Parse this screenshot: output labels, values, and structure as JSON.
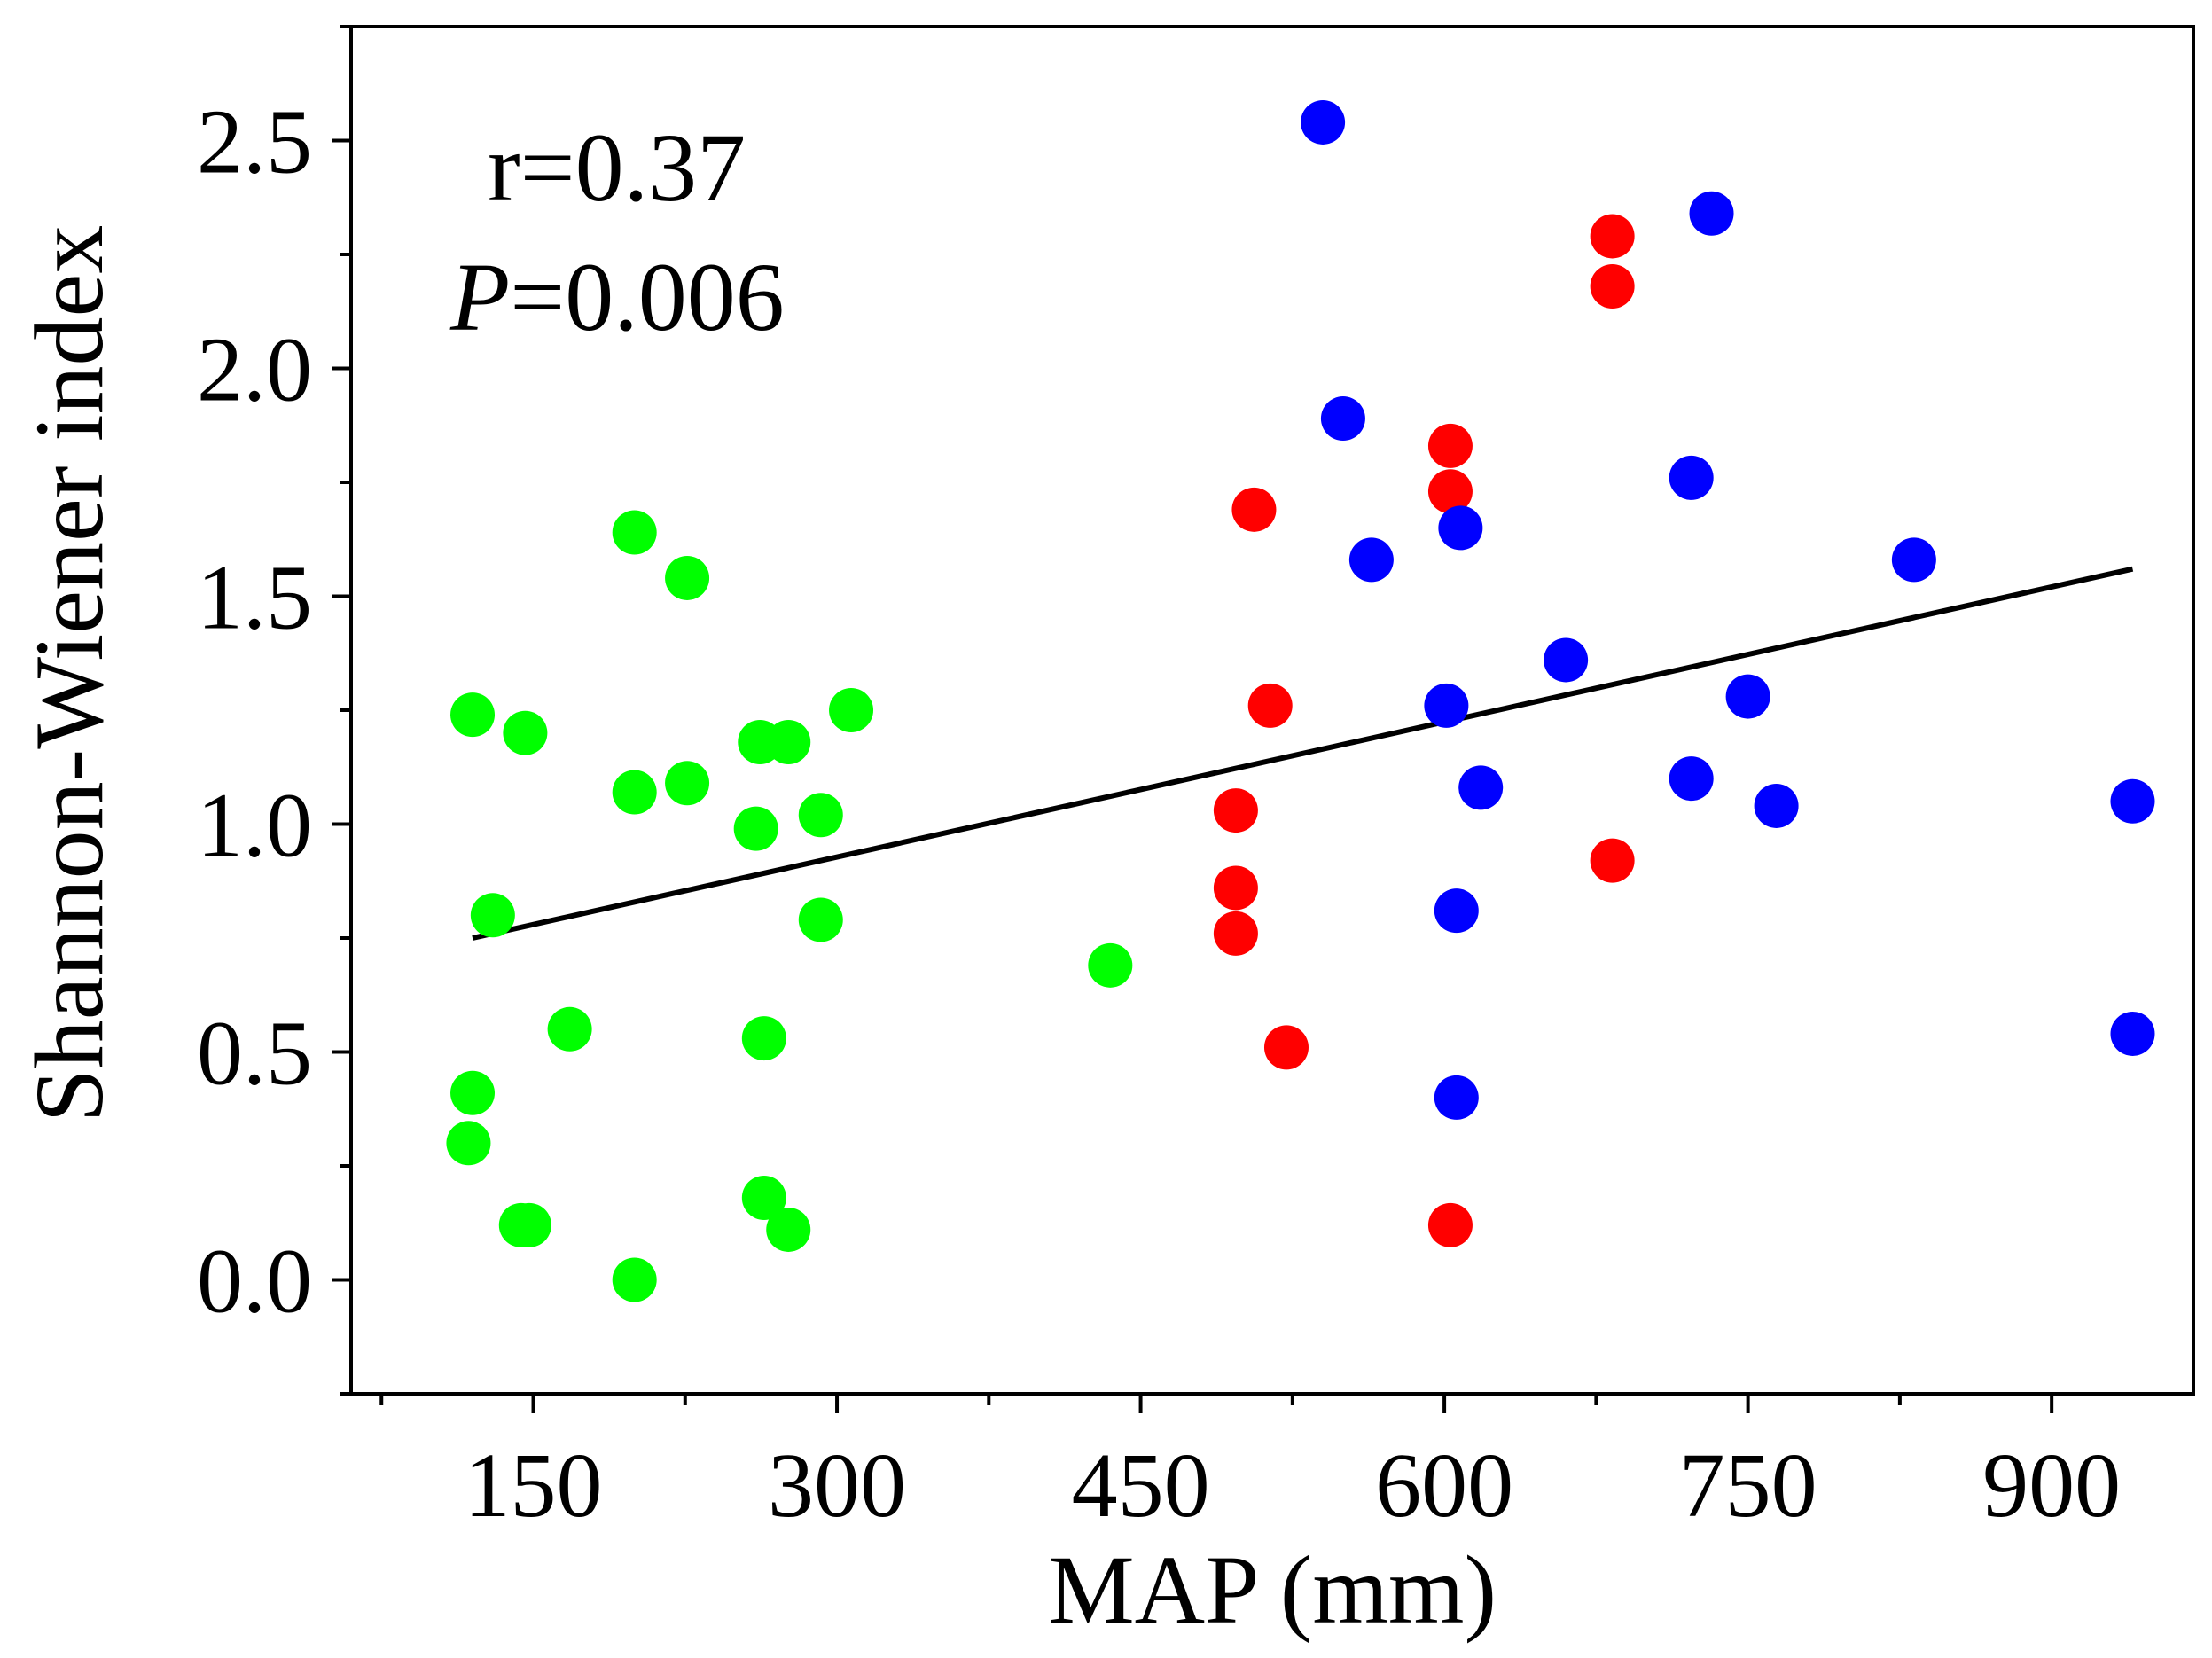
{
  "chart_data": {
    "type": "scatter",
    "title": "",
    "xlabel": "MAP (mm)",
    "ylabel": "Shannon-Wiener index",
    "xlim": [
      60,
      970
    ],
    "ylim": [
      -0.25,
      2.75
    ],
    "xticks": [
      150,
      300,
      450,
      600,
      750,
      900
    ],
    "yticks": [
      0.0,
      0.5,
      1.0,
      1.5,
      2.0,
      2.5
    ],
    "xtick_labels": [
      "150",
      "300",
      "450",
      "600",
      "750",
      "900"
    ],
    "ytick_labels": [
      "0.0",
      "0.5",
      "1.0",
      "1.5",
      "2.0",
      "2.5"
    ],
    "grid": false,
    "annotations": {
      "r_text": "r=0.37",
      "p_symbol": "P",
      "p_value": "=0.006"
    },
    "trend_line": {
      "x": [
        120,
        940
      ],
      "y": [
        0.75,
        1.56
      ]
    },
    "series": [
      {
        "name": "green group",
        "color": "#00ff00",
        "points": [
          [
            120,
            1.24
          ],
          [
            146,
            1.2
          ],
          [
            200,
            1.07
          ],
          [
            200,
            1.64
          ],
          [
            226,
            1.54
          ],
          [
            226,
            1.09
          ],
          [
            262,
            1.18
          ],
          [
            276,
            1.18
          ],
          [
            307,
            1.25
          ],
          [
            260,
            0.99
          ],
          [
            292,
            1.02
          ],
          [
            292,
            0.79
          ],
          [
            130,
            0.8
          ],
          [
            435,
            0.69
          ],
          [
            168,
            0.55
          ],
          [
            264,
            0.53
          ],
          [
            120,
            0.41
          ],
          [
            118,
            0.3
          ],
          [
            144,
            0.12
          ],
          [
            148,
            0.12
          ],
          [
            200,
            0.0
          ],
          [
            264,
            0.18
          ],
          [
            276,
            0.11
          ]
        ]
      },
      {
        "name": "red group",
        "color": "#ff0000",
        "points": [
          [
            683,
            2.29
          ],
          [
            683,
            2.18
          ],
          [
            603,
            1.83
          ],
          [
            603,
            1.73
          ],
          [
            506,
            1.69
          ],
          [
            514,
            1.26
          ],
          [
            497,
            1.03
          ],
          [
            497,
            0.86
          ],
          [
            497,
            0.76
          ],
          [
            522,
            0.51
          ],
          [
            683,
            0.92
          ],
          [
            603,
            0.12
          ]
        ]
      },
      {
        "name": "blue group",
        "color": "#0000ff",
        "points": [
          [
            540,
            2.54
          ],
          [
            732,
            2.34
          ],
          [
            550,
            1.89
          ],
          [
            722,
            1.76
          ],
          [
            608,
            1.65
          ],
          [
            564,
            1.58
          ],
          [
            832,
            1.58
          ],
          [
            660,
            1.36
          ],
          [
            601,
            1.26
          ],
          [
            750,
            1.28
          ],
          [
            618,
            1.08
          ],
          [
            722,
            1.1
          ],
          [
            764,
            1.04
          ],
          [
            940,
            1.05
          ],
          [
            606,
            0.81
          ],
          [
            940,
            0.54
          ],
          [
            606,
            0.4
          ]
        ]
      }
    ]
  }
}
